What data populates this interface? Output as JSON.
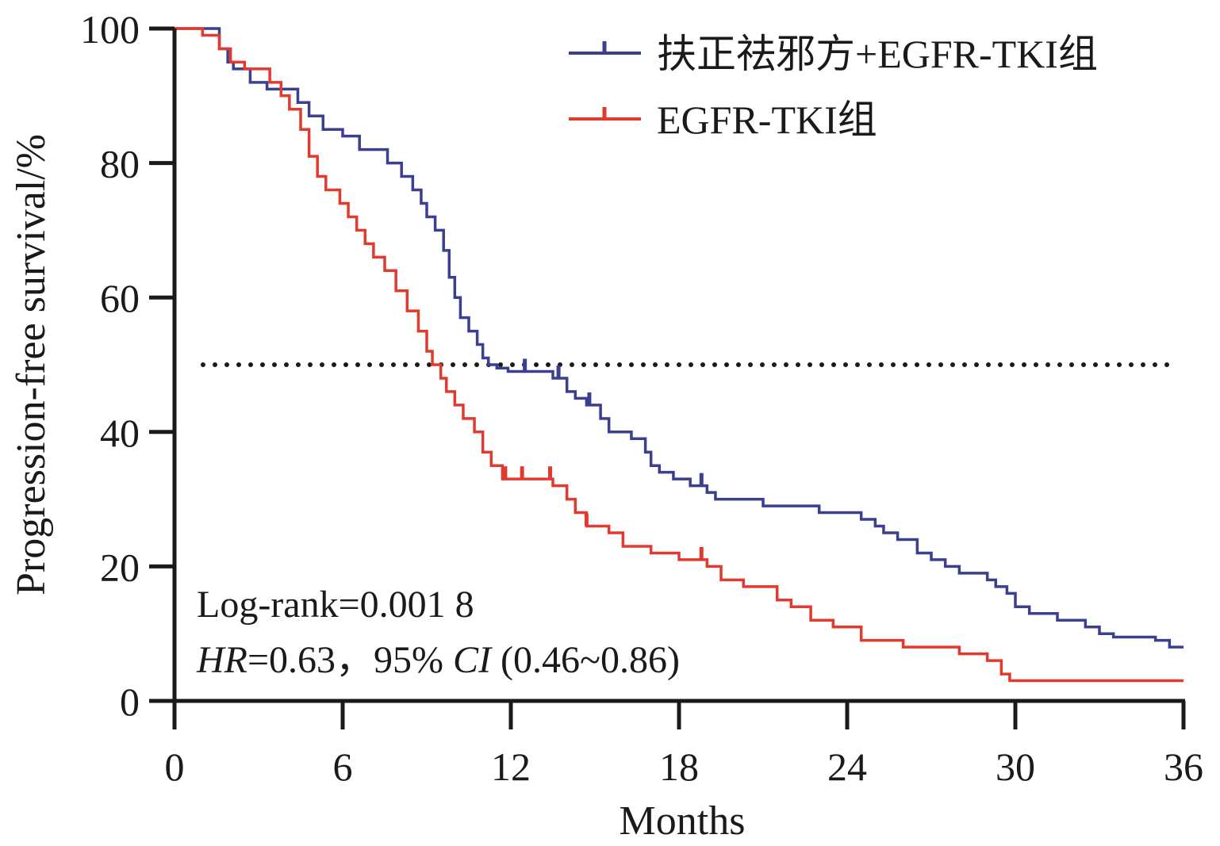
{
  "chart_data": {
    "type": "line",
    "title": "",
    "xlabel": "Months",
    "ylabel": "Progression-free survival/%",
    "xlim": [
      0,
      36
    ],
    "ylim": [
      0,
      100
    ],
    "x_ticks": [
      0,
      6,
      12,
      18,
      24,
      30,
      36
    ],
    "y_ticks": [
      0,
      20,
      40,
      60,
      80,
      100
    ],
    "grid": false,
    "legend_position": "top-right",
    "reference_line": {
      "y": 50,
      "style": "dotted",
      "color": "#1a1a1a"
    },
    "series": [
      {
        "name": "扶正祛邪方+EGFR-TKI组",
        "color": "#3b3f8f",
        "x": [
          0,
          1.6,
          1.9,
          2.1,
          2.7,
          3.3,
          4.4,
          4.8,
          5.3,
          6.0,
          6.6,
          7.6,
          8.1,
          8.5,
          8.8,
          9.0,
          9.3,
          9.6,
          9.8,
          10.0,
          10.2,
          10.5,
          10.8,
          11.0,
          11.2,
          11.5,
          11.9,
          13.5,
          14.0,
          14.3,
          14.7,
          15.2,
          15.5,
          16.3,
          16.8,
          17.0,
          17.3,
          17.8,
          18.4,
          19.0,
          19.3,
          19.7,
          20.3,
          21.0,
          23.0,
          24.5,
          25.0,
          25.3,
          25.8,
          26.5,
          27.0,
          27.5,
          28.0,
          29.0,
          29.3,
          29.7,
          30.0,
          30.5,
          31.5,
          32.5,
          33.0,
          33.5,
          35.0,
          35.5,
          36.0
        ],
        "y": [
          100,
          97,
          95,
          94,
          92,
          91,
          89,
          87,
          85,
          84,
          82,
          80,
          78,
          76,
          74,
          72,
          70,
          67,
          63,
          60,
          57,
          55,
          53,
          51,
          50,
          49.5,
          49,
          48,
          46,
          45,
          44,
          42,
          40,
          39,
          37,
          35,
          34,
          33,
          32,
          31,
          30,
          30,
          30,
          29,
          28,
          27,
          26,
          25,
          24,
          22,
          21,
          20,
          19,
          18,
          17,
          16,
          14,
          13,
          12,
          11,
          10,
          9.5,
          9,
          8,
          8
        ],
        "censor_x": [
          12.5,
          13.7,
          14.8,
          18.8
        ]
      },
      {
        "name": "EGFR-TKI组",
        "color": "#e23a2e",
        "x": [
          0,
          1.0,
          1.6,
          2.0,
          2.5,
          3.4,
          3.8,
          4.1,
          4.5,
          4.8,
          5.1,
          5.4,
          5.9,
          6.2,
          6.5,
          6.8,
          7.1,
          7.5,
          7.9,
          8.3,
          8.7,
          9.0,
          9.2,
          9.5,
          9.7,
          10.0,
          10.3,
          10.7,
          11.0,
          11.3,
          11.7,
          13.5,
          14.0,
          14.3,
          14.7,
          15.5,
          16.0,
          17.0,
          18.0,
          19.0,
          19.5,
          20.3,
          21.5,
          22.0,
          22.7,
          23.5,
          24.5,
          26.0,
          28.0,
          29.0,
          29.5,
          29.8,
          33.0,
          35.0,
          36.0
        ],
        "y": [
          100,
          99,
          97,
          95,
          94,
          92,
          90,
          88,
          85,
          81,
          78,
          76,
          74,
          72,
          70,
          68,
          66,
          64,
          61,
          58,
          55,
          52,
          50,
          48,
          46,
          44,
          42,
          40,
          37,
          35,
          33,
          32,
          30,
          28,
          26,
          25,
          23,
          22,
          21,
          20,
          18,
          17,
          15,
          14,
          12,
          11,
          9,
          8,
          7,
          6,
          4,
          3,
          3,
          3,
          3
        ],
        "censor_x": [
          11.8,
          12.4,
          13.4,
          14.7,
          18.8
        ]
      }
    ],
    "annotations": {
      "logrank": "Log-rank=0.001 8",
      "hr_label": "HR",
      "hr_value": "=0.63，95% ",
      "ci_label": "CI",
      "ci_value": " (0.46~0.86)"
    }
  }
}
